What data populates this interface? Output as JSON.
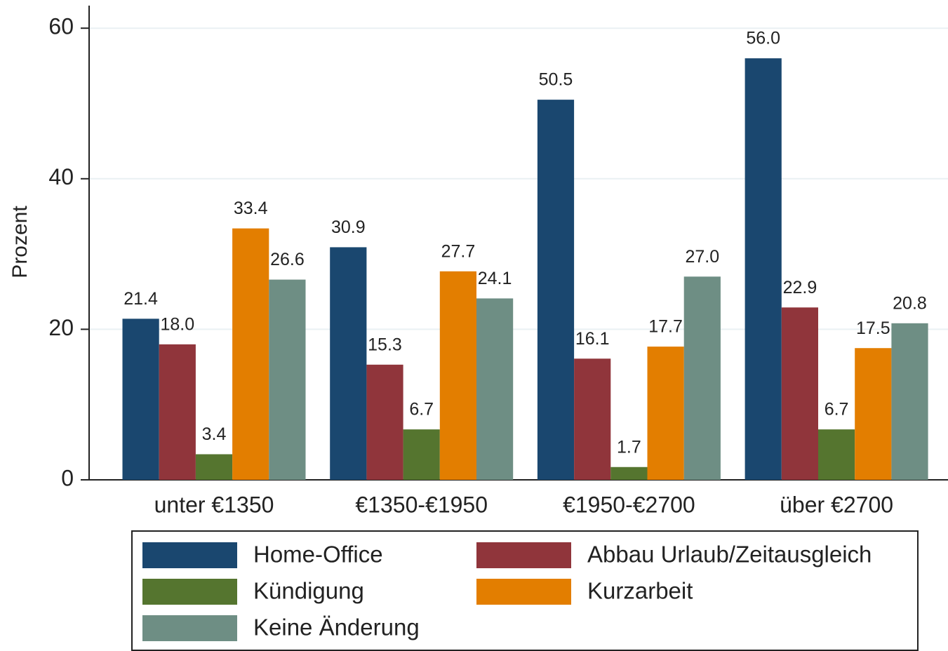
{
  "chart_data": {
    "type": "bar",
    "y_label": "Prozent",
    "categories": [
      "unter €1350",
      "€1350-€1950",
      "€1950-€2700",
      "über €2700"
    ],
    "series": [
      {
        "name": "Home-Office",
        "color": "#1a476f",
        "values": [
          21.4,
          30.9,
          50.5,
          56.0
        ],
        "value_labels": [
          "21.4",
          "30.9",
          "50.5",
          "56.0"
        ]
      },
      {
        "name": "Abbau Urlaub/Zeitausgleich",
        "color": "#90353b",
        "values": [
          18.0,
          15.3,
          16.1,
          22.9
        ],
        "value_labels": [
          "18.0",
          "15.3",
          "16.1",
          "22.9"
        ]
      },
      {
        "name": "Kündigung",
        "color": "#55752f",
        "values": [
          3.4,
          6.7,
          1.7,
          6.7
        ],
        "value_labels": [
          "3.4",
          "6.7",
          "1.7",
          "6.7"
        ]
      },
      {
        "name": "Kurzarbeit",
        "color": "#e37e00",
        "values": [
          33.4,
          27.7,
          17.7,
          17.5
        ],
        "value_labels": [
          "33.4",
          "27.7",
          "17.7",
          "17.5"
        ]
      },
      {
        "name": "Keine Änderung",
        "color": "#6e8e84",
        "values": [
          26.6,
          24.1,
          27.0,
          20.8
        ],
        "value_labels": [
          "26.6",
          "24.1",
          "27.0",
          "20.8"
        ]
      }
    ],
    "ylim": [
      0,
      63
    ],
    "yticks": [
      0,
      20,
      40,
      60
    ],
    "grid": true
  }
}
